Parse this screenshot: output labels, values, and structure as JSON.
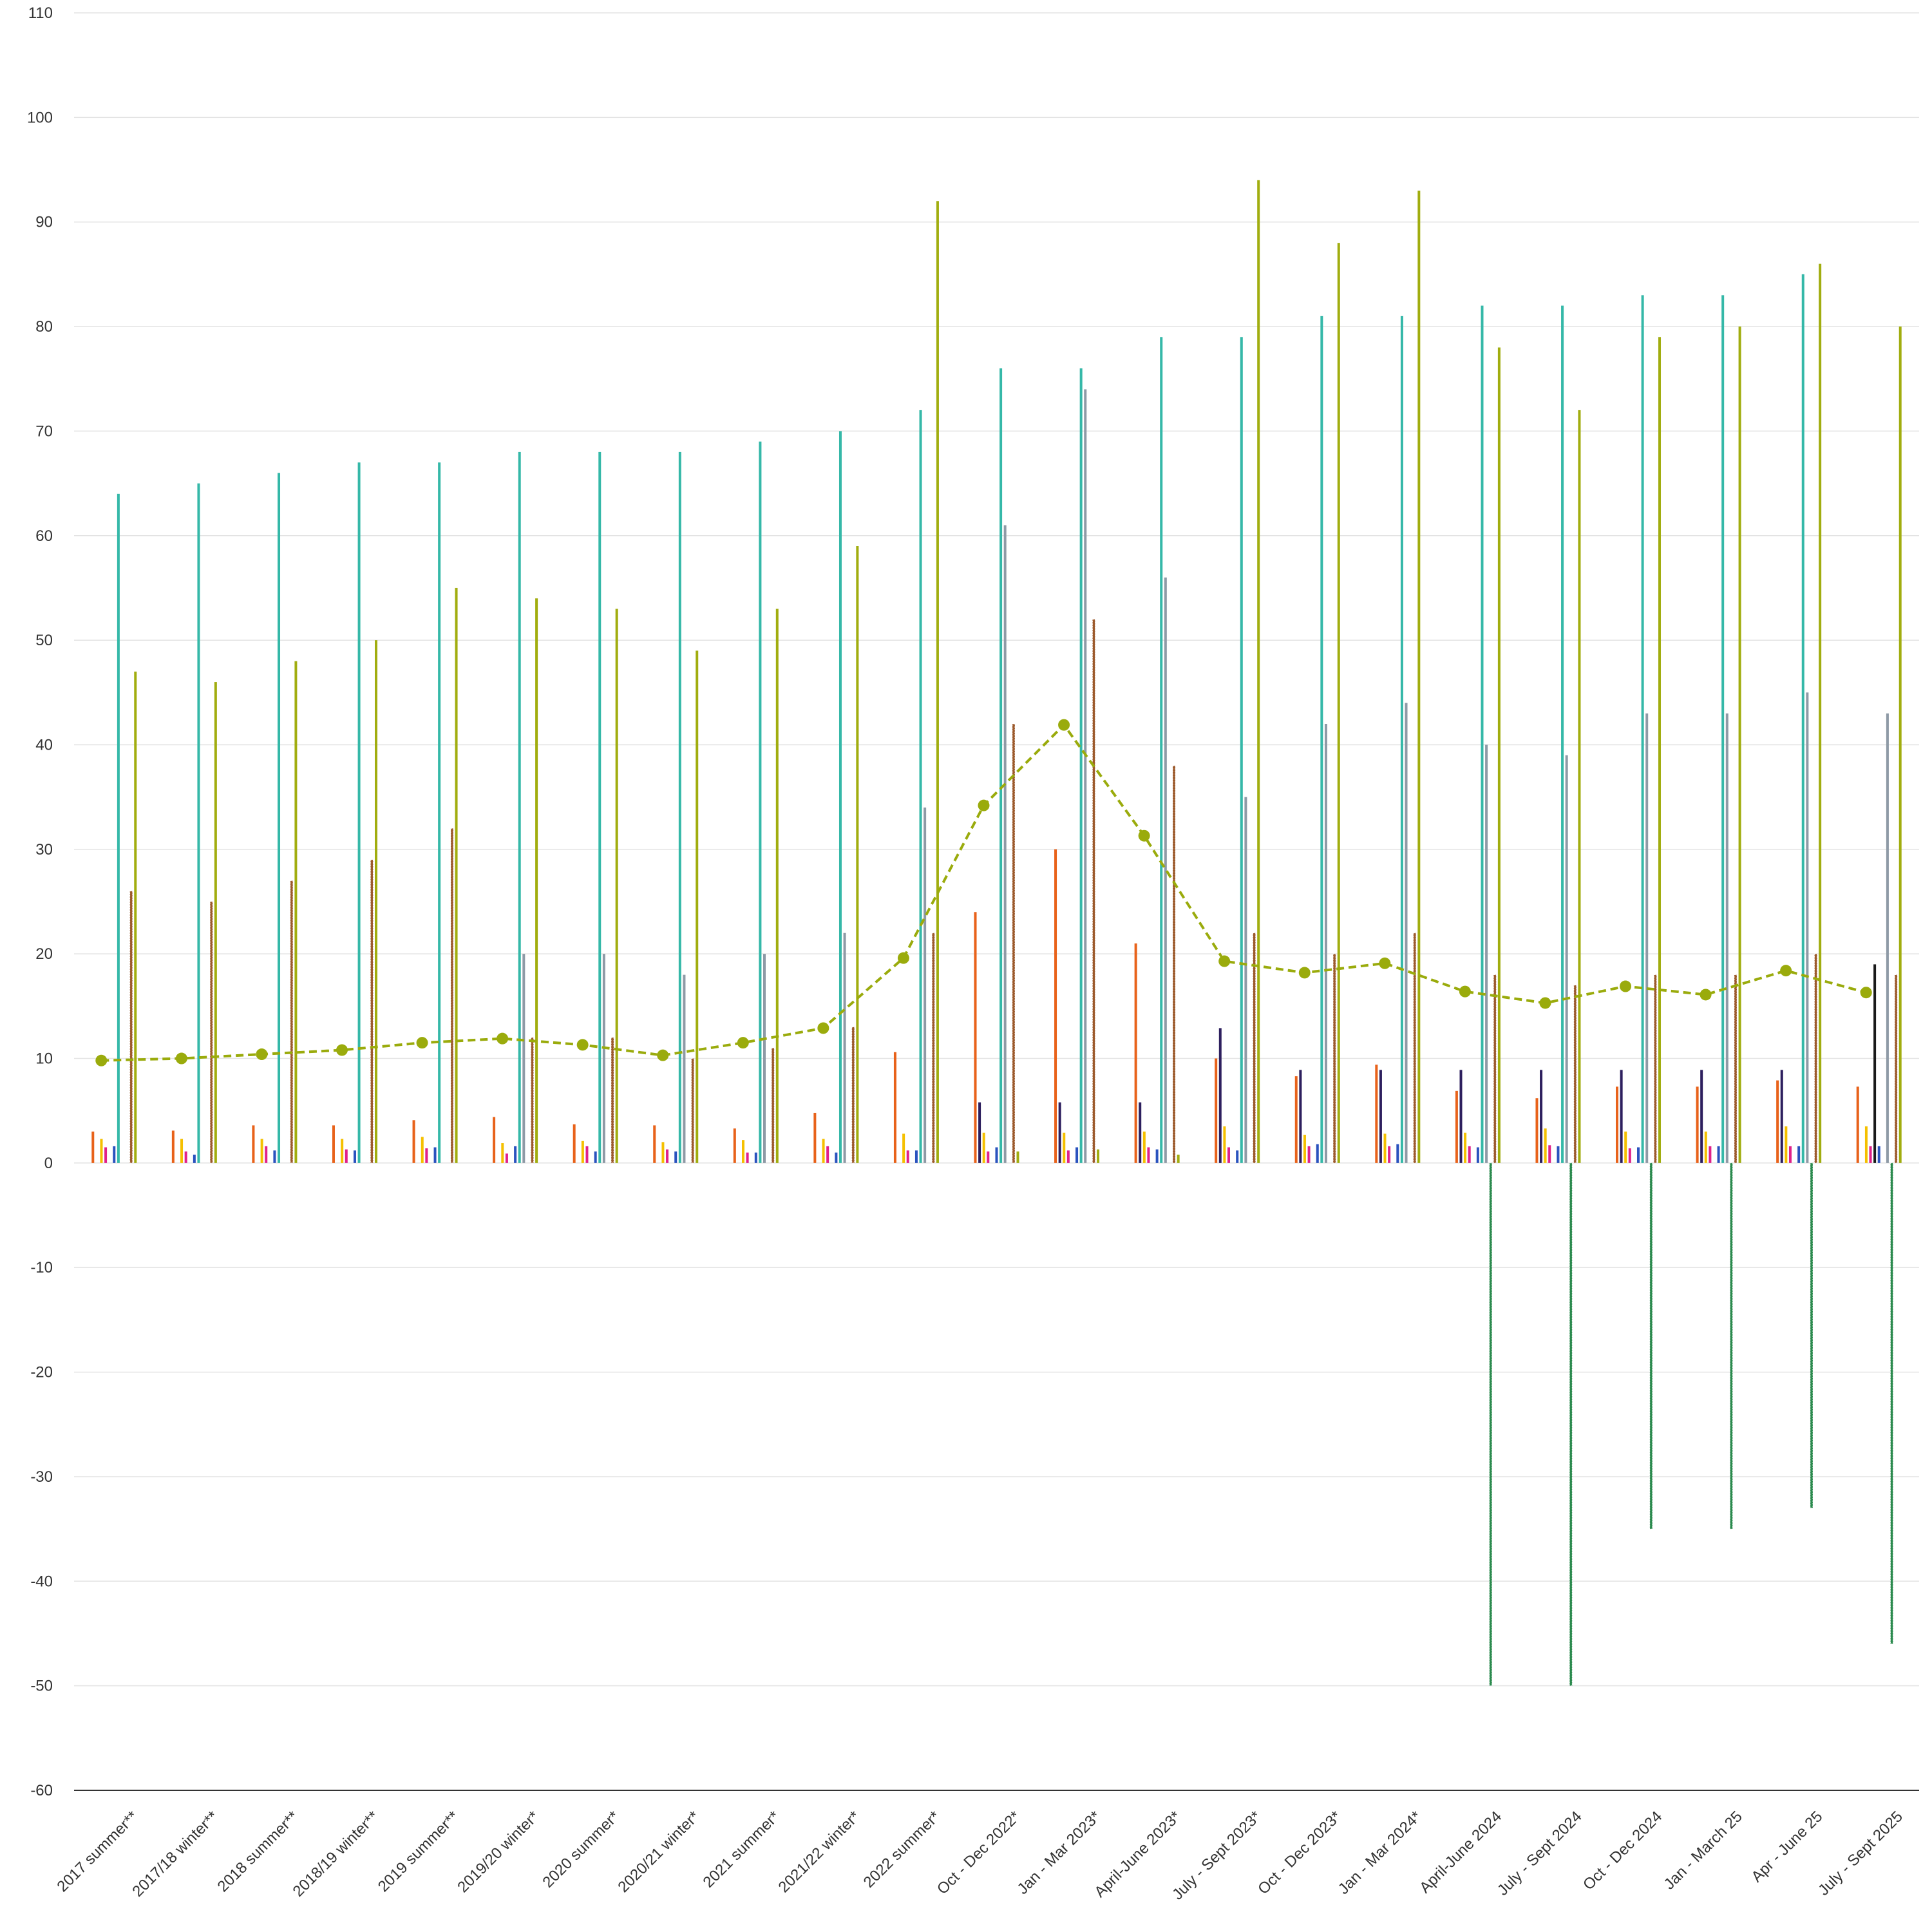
{
  "chart_data": {
    "type": "bar",
    "title": "",
    "xlabel": "",
    "ylabel": "",
    "ylim": [
      -60,
      110
    ],
    "yticks": [
      -60,
      -50,
      -40,
      -30,
      -20,
      -10,
      0,
      10,
      20,
      30,
      40,
      50,
      60,
      70,
      80,
      90,
      100,
      110
    ],
    "grid": true,
    "legend": "none",
    "categories": [
      "2017 summer**",
      "2017/18 winter**",
      "2018 summer**",
      "2018/19 winter**",
      "2019 summer**",
      "2019/20 winter*",
      "2020 summer*",
      "2020/21 winter*",
      "2021 summer*",
      "2021/22 winter*",
      "2022 summer*",
      "Oct - Dec 2022*",
      "Jan - Mar 2023*",
      "April-June 2023*",
      "July - Sept 2023*",
      "Oct - Dec 2023*",
      "Jan - Mar 2024*",
      "April-June 2024",
      "July - Sept 2024",
      "Oct - Dec 2024",
      "Jan - March 25",
      "Apr - June 25",
      "July - Sept 2025"
    ],
    "series": [
      {
        "color": "#e8621a",
        "style": "solid",
        "values": [
          3.0,
          3.1,
          3.6,
          3.6,
          4.1,
          4.4,
          3.7,
          3.6,
          3.3,
          4.8,
          10.6,
          24.0,
          30.0,
          21.0,
          10.0,
          8.3,
          9.4,
          6.9,
          6.2,
          7.3,
          7.3,
          7.9,
          7.3
        ]
      },
      {
        "color": "#2d1f5e",
        "style": "solid",
        "values": [
          null,
          null,
          null,
          null,
          null,
          null,
          null,
          null,
          null,
          null,
          null,
          5.8,
          5.8,
          5.8,
          12.9,
          8.9,
          8.9,
          8.9,
          8.9,
          8.9,
          8.9,
          8.9,
          null
        ]
      },
      {
        "color": "#f5c000",
        "style": "solid",
        "values": [
          2.3,
          2.3,
          2.3,
          2.3,
          2.5,
          1.9,
          2.1,
          2.0,
          2.2,
          2.3,
          2.8,
          2.9,
          2.9,
          3.0,
          3.5,
          2.7,
          2.8,
          2.9,
          3.3,
          3.0,
          3.0,
          3.5,
          3.5
        ]
      },
      {
        "color": "#e0218a",
        "style": "solid",
        "values": [
          1.5,
          1.1,
          1.6,
          1.3,
          1.4,
          0.9,
          1.6,
          1.3,
          1.0,
          1.6,
          1.2,
          1.1,
          1.2,
          1.5,
          1.5,
          1.6,
          1.6,
          1.6,
          1.7,
          1.4,
          1.6,
          1.6,
          1.6
        ]
      },
      {
        "color": "#1a1a1a",
        "style": "solid",
        "values": [
          null,
          null,
          null,
          null,
          null,
          null,
          null,
          null,
          null,
          null,
          null,
          null,
          null,
          null,
          null,
          null,
          null,
          null,
          null,
          null,
          null,
          null,
          19.0
        ]
      },
      {
        "color": "#2a52be",
        "style": "solid",
        "values": [
          1.6,
          0.8,
          1.2,
          1.2,
          1.5,
          1.6,
          1.1,
          1.1,
          1.0,
          1.0,
          1.2,
          1.5,
          1.5,
          1.3,
          1.2,
          1.8,
          1.8,
          1.5,
          1.6,
          1.5,
          1.6,
          1.6,
          1.6
        ]
      },
      {
        "color": "#35b8a8",
        "style": "solid",
        "values": [
          64,
          65,
          66,
          67,
          67,
          68,
          68,
          68,
          69,
          70,
          72,
          76,
          76,
          79,
          79,
          81,
          81,
          82,
          82,
          83,
          83,
          85,
          null
        ]
      },
      {
        "color": "#8e9aa6",
        "style": "solid",
        "values": [
          null,
          null,
          null,
          null,
          null,
          20,
          20,
          18,
          20,
          22,
          34,
          61,
          74,
          56,
          35,
          42,
          44,
          40,
          39,
          43,
          43,
          45,
          43
        ]
      },
      {
        "color": "#2b8a4e",
        "style": "dotted",
        "values": [
          null,
          null,
          null,
          null,
          null,
          null,
          null,
          null,
          null,
          null,
          null,
          null,
          null,
          null,
          null,
          null,
          null,
          -50,
          -50,
          -35,
          -35,
          -33,
          -46
        ]
      },
      {
        "color": "#9c5a2c",
        "style": "dotted",
        "values": [
          26,
          25,
          27,
          29,
          32,
          12,
          12,
          10,
          11,
          13,
          22,
          42,
          52,
          38,
          22,
          20,
          22,
          18,
          17,
          18,
          18,
          20,
          18
        ]
      },
      {
        "color": "#a1ad0f",
        "style": "solid",
        "values": [
          47,
          46,
          48,
          50,
          55,
          54,
          53,
          49,
          53,
          59,
          92,
          1.1,
          1.3,
          0.8,
          94,
          88,
          93,
          78,
          72,
          79,
          80,
          86,
          80
        ]
      }
    ],
    "line": {
      "color": "#9aab0c",
      "style": "dashed",
      "values": [
        9.8,
        10.0,
        10.4,
        10.8,
        11.5,
        11.9,
        11.3,
        10.3,
        11.5,
        12.9,
        19.6,
        34.2,
        41.9,
        31.3,
        19.3,
        18.2,
        19.1,
        16.4,
        15.3,
        16.9,
        16.1,
        18.4,
        16.3
      ]
    }
  }
}
